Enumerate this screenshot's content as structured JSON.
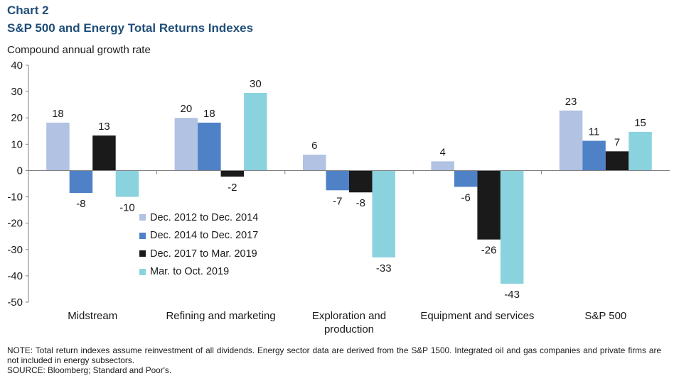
{
  "header": {
    "chart_label": "Chart 2",
    "title": "S&P 500 and Energy Total Returns Indexes",
    "ylabel": "Compound annual growth rate"
  },
  "footer": {
    "note": "NOTE: Total return indexes assume reinvestment of all dividends. Energy sector data are derived from the S&P 1500. Integrated oil and gas companies and private firms are not included in energy subsectors.",
    "source": "SOURCE: Bloomberg; Standard and Poor's."
  },
  "chart_data": {
    "type": "bar",
    "title": "S&P 500 and Energy Total Returns Indexes",
    "xlabel": "",
    "ylabel": "Compound annual growth rate",
    "ylim": [
      -50,
      40
    ],
    "yticks": [
      40,
      30,
      20,
      10,
      0,
      -10,
      -20,
      -30,
      -40,
      -50
    ],
    "grid": false,
    "legend_position": "center-left",
    "categories": [
      [
        "Midstream"
      ],
      [
        "Refining and marketing"
      ],
      [
        "Exploration and",
        "production"
      ],
      [
        "Equipment and services"
      ],
      [
        "S&P 500"
      ]
    ],
    "series": [
      {
        "name": "Dec. 2012 to Dec. 2014",
        "color": "#b1c2e2",
        "values": [
          18.2,
          20,
          6,
          3.5,
          22.8
        ],
        "labels": [
          "18",
          "20",
          "6",
          "4",
          "23"
        ]
      },
      {
        "name": "Dec. 2014 to Dec. 2017",
        "color": "#4f81c7",
        "values": [
          -8.5,
          18.2,
          -7.5,
          -6.2,
          11.3
        ],
        "labels": [
          "-8",
          "18",
          "-7",
          "-6",
          "11"
        ]
      },
      {
        "name": "Dec. 2017 to Mar. 2019",
        "color": "#1a1a1a",
        "values": [
          13.3,
          -2.3,
          -8.3,
          -26.2,
          7.3
        ],
        "labels": [
          "13",
          "-2",
          "-8",
          "-26",
          "7"
        ]
      },
      {
        "name": "Mar. to Oct. 2019",
        "color": "#8ad3de",
        "values": [
          -10,
          29.5,
          -33,
          -43,
          14.7
        ],
        "labels": [
          "-10",
          "30",
          "-33",
          "-43",
          "15"
        ]
      }
    ]
  }
}
